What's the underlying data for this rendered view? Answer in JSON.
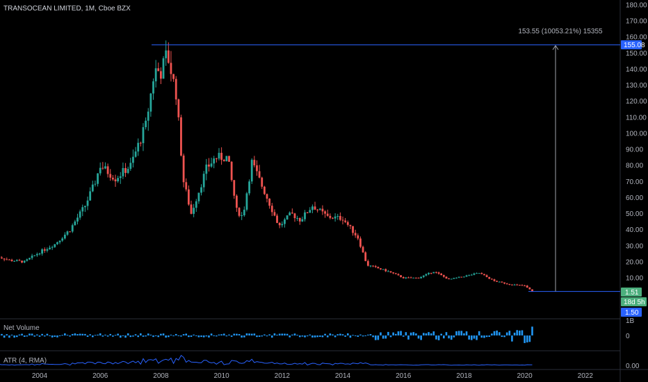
{
  "header": {
    "symbol_title": "TRANSOCEAN LIMITED, 1M, Cboe BZX"
  },
  "price_labels": {
    "high_tag": "155.08",
    "last_tag": "1.51",
    "countdown_tag": "18d 5h",
    "low_tag": "1.50",
    "measure_text": "153.55 (10053.21%) 15355"
  },
  "colors": {
    "up": "#26a69a",
    "down": "#ef5350",
    "volume": "#2196f3",
    "atr_line": "#2962ff",
    "accent": "#2962ff",
    "last_tag_bg": "#4caf7d",
    "measure_line": "#9fa3ad"
  },
  "panes": {
    "volume_title": "Net Volume",
    "volume_ticks": [
      "1B",
      "0"
    ],
    "atr_title": "ATR (4, RMA)",
    "atr_ticks": [
      "0.00"
    ]
  },
  "chart_data": {
    "type": "candlestick",
    "title": "TRANSOCEAN LIMITED, 1M, Cboe BZX",
    "interval": "1M",
    "x_ticks": [
      "2004",
      "2006",
      "2008",
      "2010",
      "2012",
      "2014",
      "2016",
      "2018",
      "2020",
      "2022"
    ],
    "y_ticks": [
      "180.00",
      "170.00",
      "160.00",
      "150.00",
      "140.00",
      "130.00",
      "120.00",
      "110.00",
      "100.00",
      "90.00",
      "80.00",
      "70.00",
      "60.00",
      "50.00",
      "40.00",
      "30.00",
      "20.00",
      "10.00",
      "0.00"
    ],
    "y_axis": {
      "min": 0,
      "max": 180,
      "scale": "linear",
      "side": "right"
    },
    "grid": false,
    "measure": {
      "from": 1.53,
      "to": 155.08,
      "change": 153.55,
      "percent": "10053.21%",
      "ticks": 15355
    },
    "last_price": 1.51,
    "period_low": 1.5,
    "close_path": [
      {
        "t": 2002.5,
        "c": 24
      },
      {
        "t": 2003.0,
        "c": 21
      },
      {
        "t": 2003.5,
        "c": 20
      },
      {
        "t": 2004.0,
        "c": 26
      },
      {
        "t": 2004.5,
        "c": 31
      },
      {
        "t": 2005.0,
        "c": 40
      },
      {
        "t": 2005.5,
        "c": 55
      },
      {
        "t": 2005.8,
        "c": 68
      },
      {
        "t": 2006.0,
        "c": 80
      },
      {
        "t": 2006.5,
        "c": 72
      },
      {
        "t": 2007.0,
        "c": 80
      },
      {
        "t": 2007.5,
        "c": 105
      },
      {
        "t": 2007.8,
        "c": 140
      },
      {
        "t": 2008.0,
        "c": 138
      },
      {
        "t": 2008.2,
        "c": 150
      },
      {
        "t": 2008.5,
        "c": 125
      },
      {
        "t": 2008.75,
        "c": 70
      },
      {
        "t": 2009.0,
        "c": 50
      },
      {
        "t": 2009.5,
        "c": 78
      },
      {
        "t": 2009.8,
        "c": 85
      },
      {
        "t": 2010.2,
        "c": 85
      },
      {
        "t": 2010.5,
        "c": 52
      },
      {
        "t": 2010.7,
        "c": 48
      },
      {
        "t": 2011.0,
        "c": 82
      },
      {
        "t": 2011.5,
        "c": 60
      },
      {
        "t": 2011.9,
        "c": 42
      },
      {
        "t": 2012.3,
        "c": 50
      },
      {
        "t": 2012.6,
        "c": 46
      },
      {
        "t": 2013.0,
        "c": 55
      },
      {
        "t": 2013.5,
        "c": 48
      },
      {
        "t": 2014.0,
        "c": 47
      },
      {
        "t": 2014.5,
        "c": 35
      },
      {
        "t": 2014.8,
        "c": 18
      },
      {
        "t": 2015.5,
        "c": 14
      },
      {
        "t": 2016.0,
        "c": 10
      },
      {
        "t": 2016.5,
        "c": 10
      },
      {
        "t": 2017.0,
        "c": 14
      },
      {
        "t": 2017.5,
        "c": 9
      },
      {
        "t": 2018.0,
        "c": 11
      },
      {
        "t": 2018.5,
        "c": 13
      },
      {
        "t": 2019.0,
        "c": 8
      },
      {
        "t": 2019.5,
        "c": 6
      },
      {
        "t": 2020.0,
        "c": 5
      },
      {
        "t": 2020.25,
        "c": 1.5
      }
    ]
  }
}
